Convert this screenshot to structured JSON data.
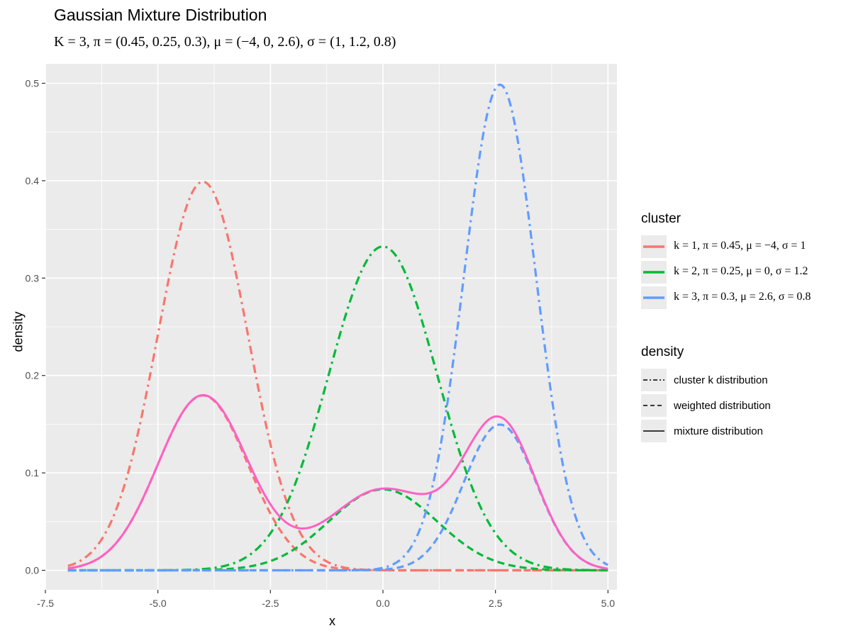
{
  "chart_data": {
    "type": "line",
    "title": "Gaussian Mixture Distribution",
    "subtitle": "K = 3, π = (0.45, 0.25, 0.3), μ = (−4, 0, 2.6), σ = (1, 1.2, 0.8)",
    "xlabel": "x",
    "ylabel": "density",
    "xlim": [
      -7.5,
      5.2
    ],
    "ylim": [
      -0.02,
      0.52
    ],
    "x_range": [
      -7,
      5
    ],
    "x_ticks": [
      "-7.5",
      "-5.0",
      "-2.5",
      "0.0",
      "2.5",
      "5.0"
    ],
    "x_tick_values": [
      -7.5,
      -5,
      -2.5,
      0,
      2.5,
      5
    ],
    "y_ticks": [
      "0.0",
      "0.1",
      "0.2",
      "0.3",
      "0.4",
      "0.5"
    ],
    "y_tick_values": [
      0,
      0.1,
      0.2,
      0.3,
      0.4,
      0.5
    ],
    "grid": true,
    "legend_placement": "right",
    "K": 3,
    "pi": [
      0.45,
      0.25,
      0.3
    ],
    "mu": [
      -4,
      0,
      2.6
    ],
    "sigma": [
      1,
      1.2,
      0.8
    ],
    "clusters": [
      {
        "name": "k = 1, π = 0.45, μ = −4, σ = 1",
        "color": "#F8766D"
      },
      {
        "name": "k = 2, π = 0.25, μ = 0, σ = 1.2",
        "color": "#00BA38"
      },
      {
        "name": "k = 3, π = 0.3, μ = 2.6, σ = 0.8",
        "color": "#619CFF"
      }
    ],
    "mixture_color": "#FF61C3",
    "legends": {
      "cluster_title": "cluster",
      "density_title": "density",
      "density_items": [
        {
          "label": "cluster k distribution",
          "linetype": "dotdash"
        },
        {
          "label": "weighted distribution",
          "linetype": "dashed"
        },
        {
          "label": "mixture distribution",
          "linetype": "solid"
        }
      ]
    }
  }
}
